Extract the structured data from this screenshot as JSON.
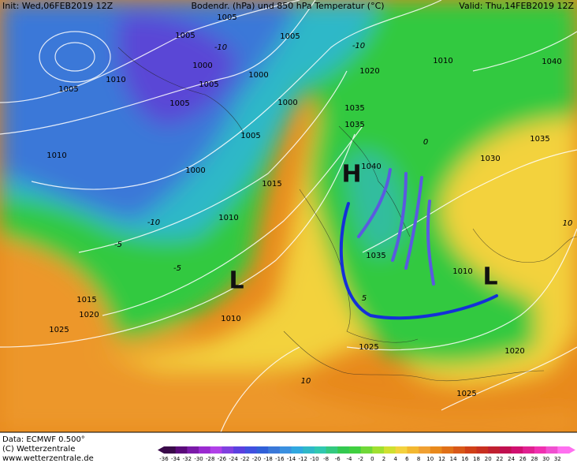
{
  "header": {
    "init": "Init: Wed,06FEB2019 12Z",
    "title": "Bodendr. (hPa) und 850 hPa Temperatur (°C)",
    "valid": "Valid: Thu,14FEB2019 12Z"
  },
  "isobar_labels": [
    "1005",
    "1005",
    "1005",
    "1005",
    "1005",
    "1005",
    "1005",
    "1000",
    "1000",
    "1000",
    "1000",
    "1010",
    "1010",
    "1010",
    "1010",
    "1010",
    "1010",
    "1015",
    "1015",
    "1020",
    "1020",
    "1020",
    "1025",
    "1025",
    "1025",
    "1030",
    "1035",
    "1035",
    "1035",
    "1035",
    "1040",
    "1040"
  ],
  "temperature_labels": [
    "-10",
    "-10",
    "-10",
    "-5",
    "-5",
    "5",
    "10",
    "10",
    "0"
  ],
  "pressure_systems": [
    "H",
    "L",
    "L"
  ],
  "footer": {
    "data": "Data: ECMWF  0.500°",
    "copyright": "(C) Wetterzentrale",
    "url": "www.wetterzentrale.de"
  },
  "colorbar": {
    "labels": [
      "-36",
      "-34",
      "-32",
      "-30",
      "-28",
      "-26",
      "-24",
      "-22",
      "-20",
      "-18",
      "-16",
      "-14",
      "-12",
      "-10",
      "-8",
      "-6",
      "-4",
      "-2",
      "0",
      "2",
      "4",
      "6",
      "8",
      "10",
      "12",
      "14",
      "16",
      "18",
      "20",
      "22",
      "24",
      "26",
      "28",
      "30",
      "32"
    ]
  }
}
